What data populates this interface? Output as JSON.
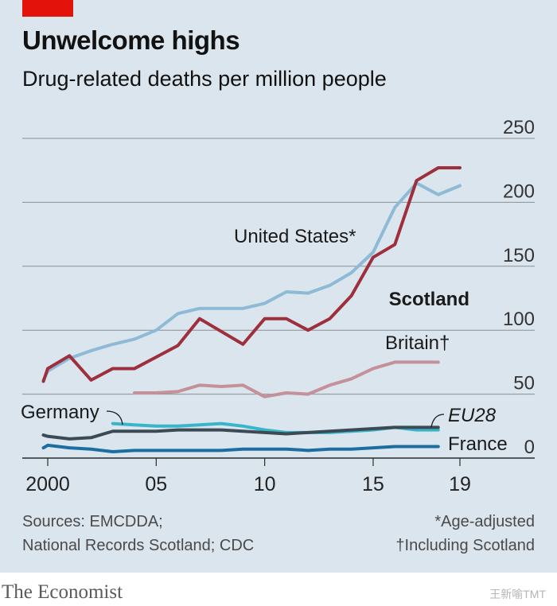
{
  "header": {
    "title": "Unwelcome highs",
    "subtitle": "Drug-related deaths per million people"
  },
  "footer": {
    "source_line1": "Sources: EMCDDA;",
    "source_line2": "National Records Scotland; CDC",
    "note_line1": "*Age-adjusted",
    "note_line2": "†Including Scotland",
    "brand": "The Economist",
    "watermark": "王新喻TMT"
  },
  "colors": {
    "background": "#dae5ee",
    "accent": "#e3120b",
    "united_states": "#8fbad6",
    "scotland": "#9e2f3c",
    "britain": "#c4909a",
    "germany": "#37b6c9",
    "eu28": "#3b4a55",
    "france": "#1d6ea0",
    "gridline": "#8a8f94"
  },
  "chart_data": {
    "type": "line",
    "title": "Unwelcome highs",
    "ylabel": "Drug-related deaths per million people",
    "xlabel": "",
    "ylim": [
      0,
      250
    ],
    "yticks": [
      0,
      50,
      100,
      150,
      200,
      250
    ],
    "xlim": [
      2000,
      2019
    ],
    "xticks": [
      {
        "value": 2000,
        "label": "2000"
      },
      {
        "value": 2005,
        "label": "05"
      },
      {
        "value": 2010,
        "label": "10"
      },
      {
        "value": 2015,
        "label": "15"
      },
      {
        "value": 2019,
        "label": "19"
      }
    ],
    "grid": true,
    "series": [
      {
        "name": "United States*",
        "key": "united_states",
        "x": [
          1999,
          2000,
          2001,
          2002,
          2003,
          2004,
          2005,
          2006,
          2007,
          2008,
          2009,
          2010,
          2011,
          2012,
          2013,
          2014,
          2015,
          2016,
          2017,
          2018,
          2019
        ],
        "values": [
          61,
          68,
          78,
          84,
          89,
          93,
          100,
          113,
          117,
          117,
          117,
          121,
          130,
          129,
          135,
          145,
          161,
          196,
          215,
          206,
          213
        ]
      },
      {
        "name": "Scotland",
        "key": "scotland",
        "x": [
          1999,
          2000,
          2001,
          2002,
          2003,
          2004,
          2005,
          2006,
          2007,
          2008,
          2009,
          2010,
          2011,
          2012,
          2013,
          2014,
          2015,
          2016,
          2017,
          2018,
          2019
        ],
        "values": [
          60,
          70,
          80,
          61,
          70,
          70,
          79,
          88,
          109,
          99,
          89,
          109,
          109,
          100,
          109,
          127,
          157,
          167,
          217,
          227,
          227
        ]
      },
      {
        "name": "Britain†",
        "key": "britain",
        "x": [
          2004,
          2005,
          2006,
          2007,
          2008,
          2009,
          2010,
          2011,
          2012,
          2013,
          2014,
          2015,
          2016,
          2017,
          2018
        ],
        "values": [
          51,
          51,
          52,
          57,
          56,
          57,
          48,
          51,
          50,
          57,
          62,
          70,
          75,
          75,
          75
        ]
      },
      {
        "name": "Germany",
        "key": "germany",
        "x": [
          2003,
          2004,
          2005,
          2006,
          2007,
          2008,
          2009,
          2010,
          2011,
          2012,
          2013,
          2014,
          2015,
          2016,
          2017,
          2018
        ],
        "values": [
          27,
          26,
          25,
          25,
          26,
          27,
          25,
          22,
          20,
          20,
          20,
          21,
          22,
          24,
          22,
          22
        ]
      },
      {
        "name": "EU28",
        "key": "eu28",
        "x": [
          1999,
          2000,
          2001,
          2002,
          2003,
          2004,
          2005,
          2006,
          2007,
          2008,
          2009,
          2010,
          2011,
          2012,
          2013,
          2014,
          2015,
          2016,
          2017,
          2018
        ],
        "values": [
          18,
          17,
          15,
          16,
          21,
          21,
          21,
          22,
          22,
          22,
          21,
          20,
          19,
          20,
          21,
          22,
          23,
          24,
          24,
          24
        ]
      },
      {
        "name": "France",
        "key": "france",
        "x": [
          1999,
          2000,
          2001,
          2002,
          2003,
          2004,
          2005,
          2006,
          2007,
          2008,
          2009,
          2010,
          2011,
          2012,
          2013,
          2014,
          2015,
          2016,
          2017,
          2018
        ],
        "values": [
          8,
          10,
          8,
          7,
          5,
          6,
          6,
          6,
          6,
          6,
          7,
          7,
          7,
          6,
          7,
          7,
          8,
          9,
          9,
          9
        ]
      }
    ]
  }
}
